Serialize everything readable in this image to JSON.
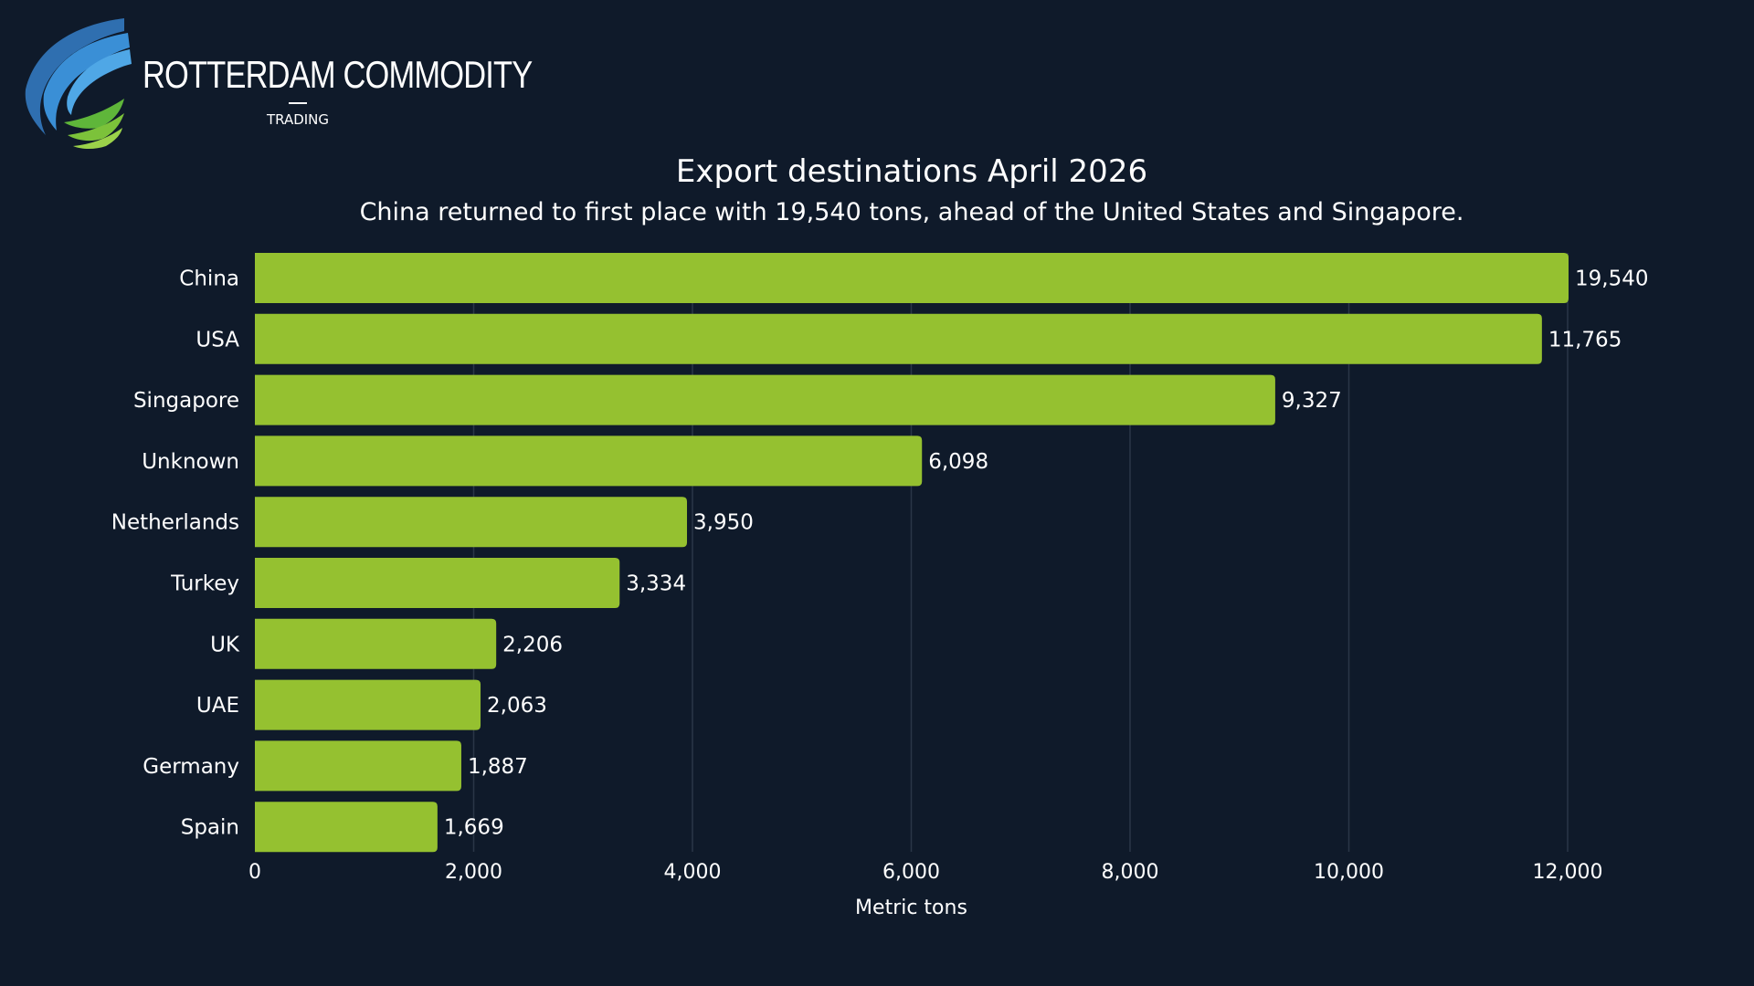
{
  "brand": {
    "name": "ROTTERDAM COMMODITY",
    "sub": "TRADING"
  },
  "colors": {
    "background": "#0f1a2a",
    "bar": "#95c130",
    "grid": "#2a3647",
    "text": "#ffffff",
    "logo_blue": "#3a8fd6",
    "logo_green": "#7cc23a"
  },
  "chart_data": {
    "type": "bar",
    "orientation": "horizontal",
    "title": "Export destinations April 2026",
    "subtitle": "China returned to first place with 19,540 tons, ahead of the United States and Singapore.",
    "xlabel": "Metric tons",
    "ylabel": "",
    "categories": [
      "China",
      "USA",
      "Singapore",
      "Unknown",
      "Netherlands",
      "Turkey",
      "UK",
      "UAE",
      "Germany",
      "Spain"
    ],
    "values": [
      19540,
      11765,
      9327,
      6098,
      3950,
      3334,
      2206,
      2063,
      1887,
      1669
    ],
    "value_labels": [
      "19,540",
      "11,765",
      "9,327",
      "6,098",
      "3,950",
      "3,334",
      "2,206",
      "2,063",
      "1,887",
      "1,669"
    ],
    "xlim": [
      0,
      12000
    ],
    "xaxis_truncated": true,
    "xticks": [
      0,
      2000,
      4000,
      6000,
      8000,
      10000,
      12000
    ],
    "xtick_labels": [
      "0",
      "2,000",
      "4,000",
      "6,000",
      "8,000",
      "10,000",
      "12,000"
    ],
    "grid": "vertical",
    "legend": "none"
  }
}
